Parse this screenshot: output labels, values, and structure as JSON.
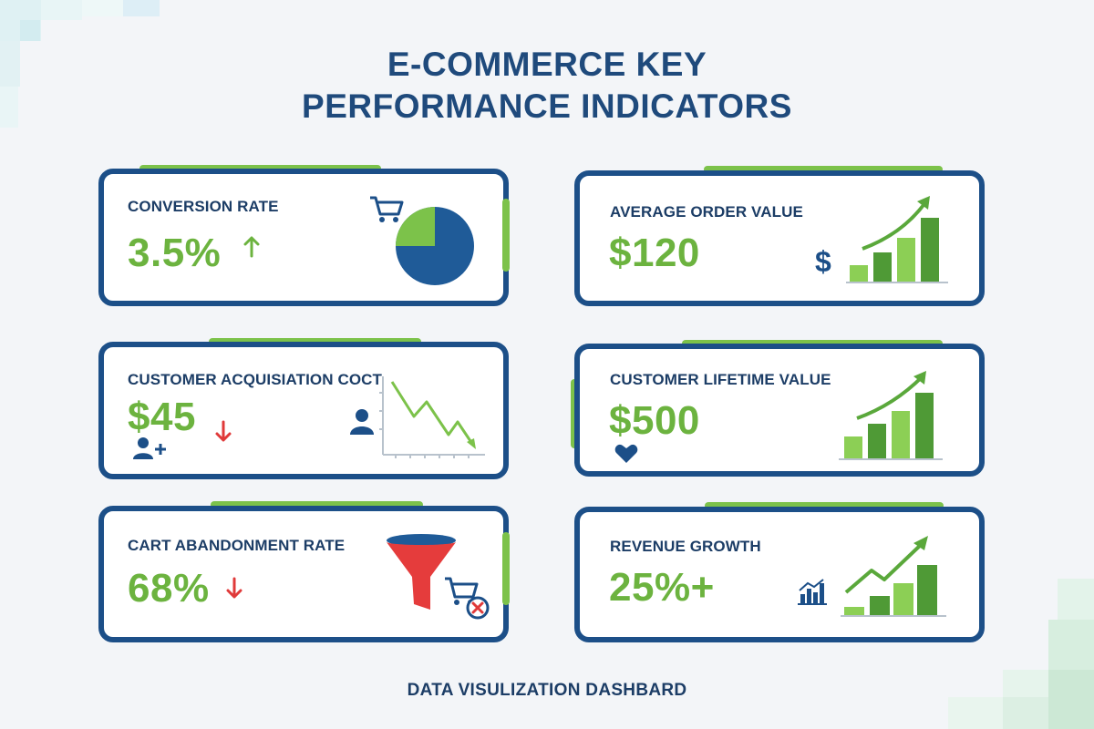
{
  "header": {
    "title_line1": "E-COMMERCE KEY",
    "title_line2": "PERFORMANCE INDICATORS"
  },
  "footer": {
    "text": "DATA VISULIZATION DASHBARD"
  },
  "colors": {
    "navy": "#1c4f88",
    "green": "#6cb33f",
    "red": "#e03a3a",
    "background": "#f3f5f8"
  },
  "kpis": [
    {
      "label": "CONVERSION RATE",
      "value": "3.5%",
      "trend": "up",
      "icons": [
        "cart-icon",
        "pie-chart-icon"
      ]
    },
    {
      "label": "AVERAGE ORDER VALUE",
      "value": "$120",
      "trend": "up",
      "icons": [
        "dollar-icon",
        "bar-growth-chart-icon"
      ]
    },
    {
      "label": "CUSTOMER ACQUISIATION COCT",
      "value": "$45",
      "trend": "down",
      "icons": [
        "add-user-icon",
        "user-icon",
        "declining-line-chart-icon"
      ]
    },
    {
      "label": "CUSTOMER LIFETIME VALUE",
      "value": "$500",
      "trend": "up",
      "icons": [
        "heart-icon",
        "bar-growth-chart-icon"
      ]
    },
    {
      "label": "CART ABANDONMENT RATE",
      "value": "68%",
      "trend": "down",
      "icons": [
        "funnel-icon",
        "cart-remove-icon"
      ]
    },
    {
      "label": "REVENUE GROWTH",
      "value": "25%+",
      "trend": "up",
      "icons": [
        "small-bar-chart-icon",
        "bar-growth-chart-icon"
      ]
    }
  ]
}
